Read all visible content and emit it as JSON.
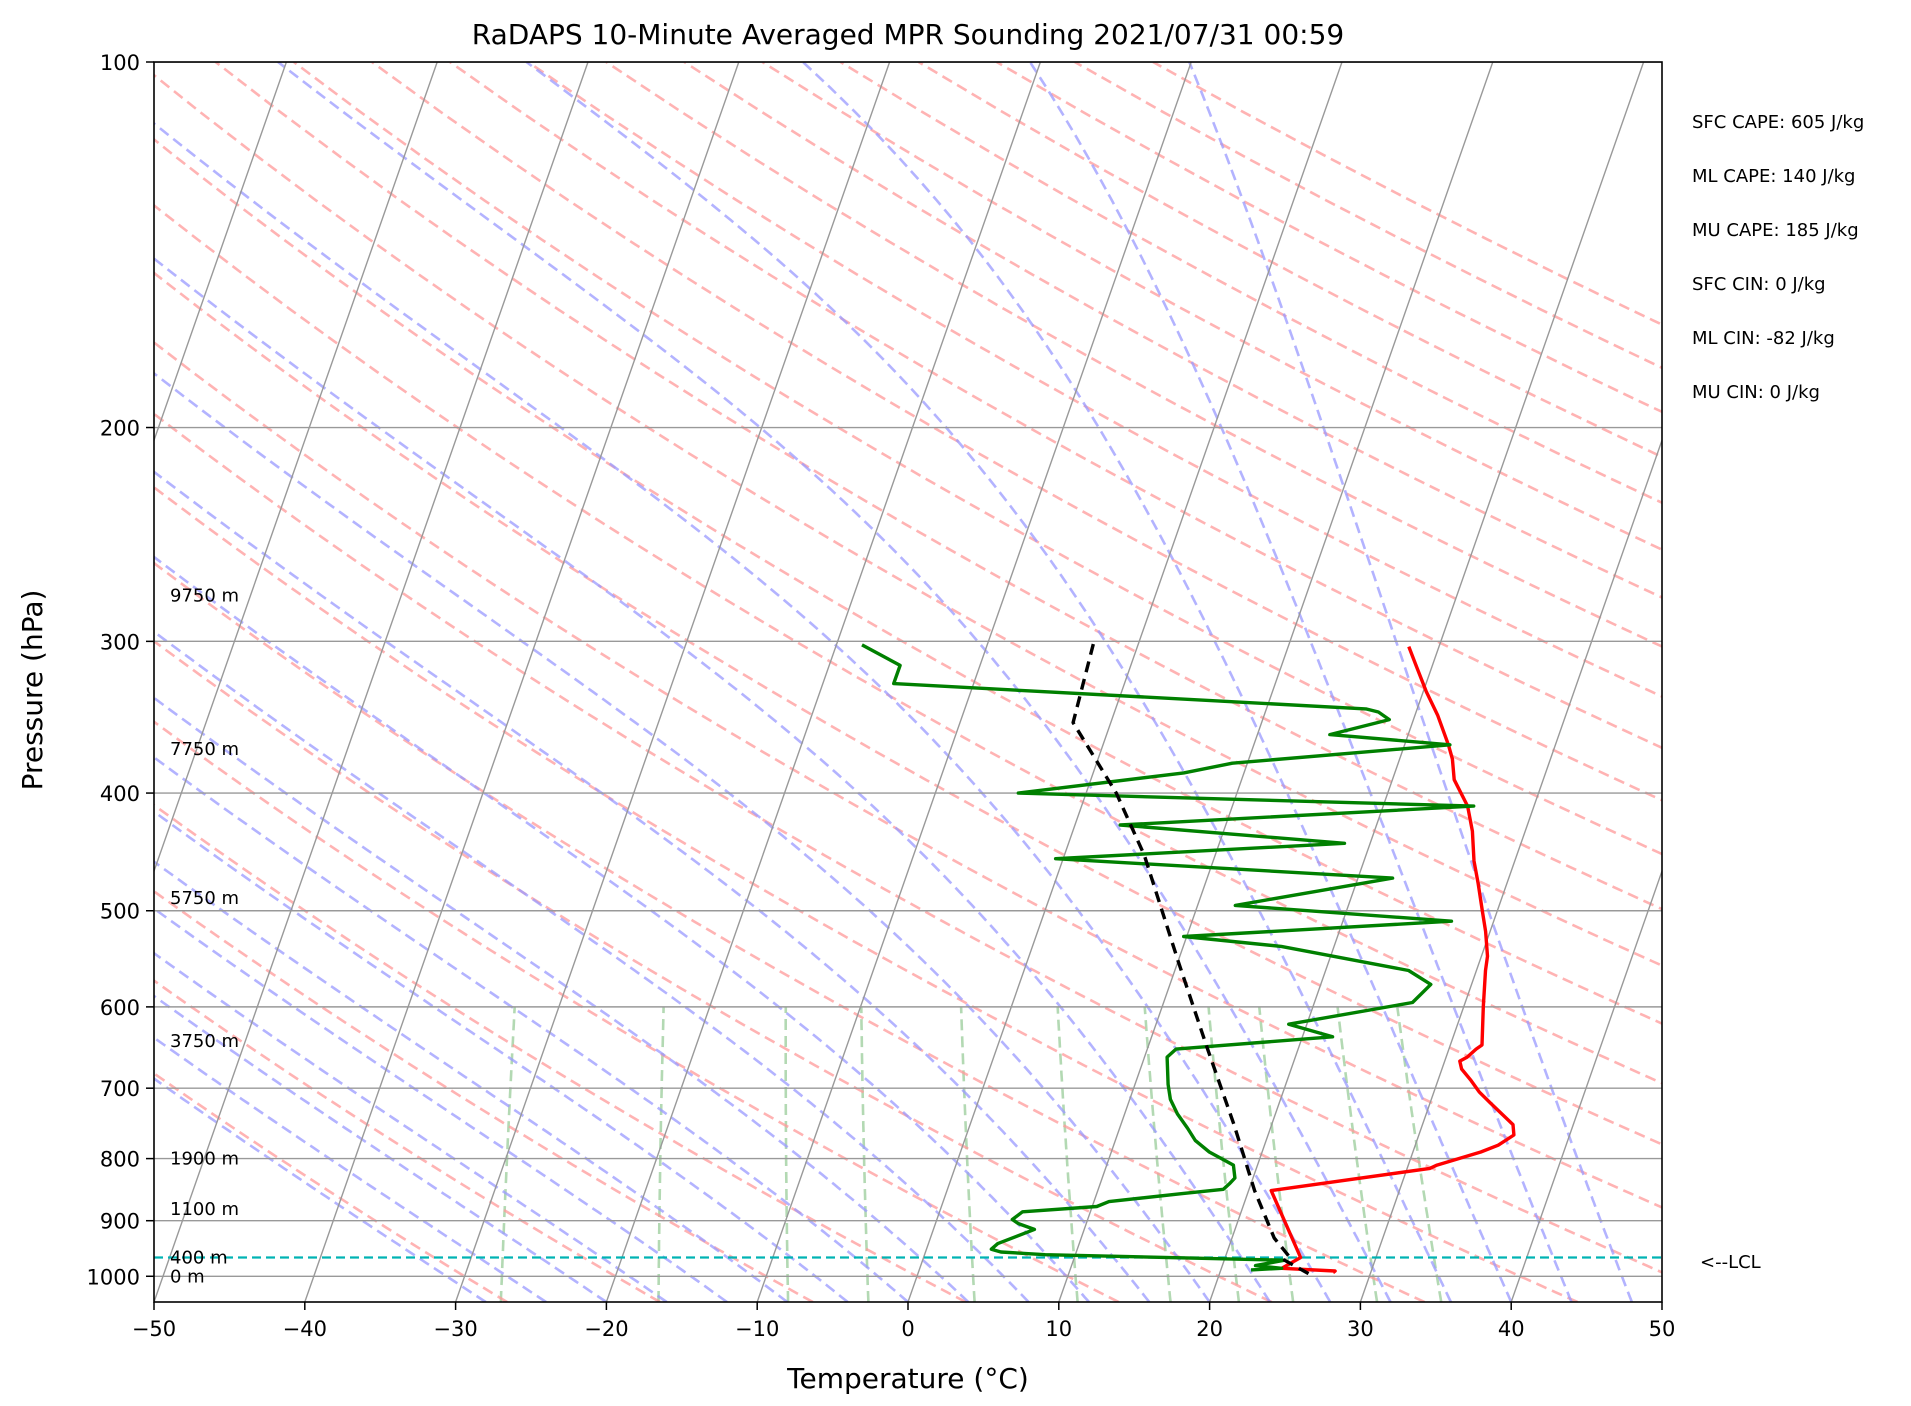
{
  "chart_data": {
    "type": "line",
    "title": "RaDAPS 10-Minute Averaged MPR Sounding 2021/07/31 00:59",
    "xlabel": "Temperature (°C)",
    "ylabel": "Pressure (hPa)",
    "xlim": [
      -50,
      50
    ],
    "ylim": [
      1050,
      100
    ],
    "y_scale": "log",
    "x_ticks": [
      "−50",
      "−40",
      "−30",
      "−20",
      "−10",
      "0",
      "10",
      "20",
      "30",
      "40",
      "50"
    ],
    "y_ticks": [
      100,
      200,
      300,
      400,
      500,
      600,
      700,
      800,
      900,
      1000
    ],
    "height_labels": [
      {
        "p": 1000,
        "text": "0 m"
      },
      {
        "p": 965,
        "text": "400 m"
      },
      {
        "p": 880,
        "text": "1100 m"
      },
      {
        "p": 800,
        "text": "1900 m"
      },
      {
        "p": 640,
        "text": "3750 m"
      },
      {
        "p": 488,
        "text": "5750 m"
      },
      {
        "p": 368,
        "text": "7750 m"
      },
      {
        "p": 275,
        "text": "9750 m"
      }
    ],
    "stats": [
      "SFC CAPE: 605 J/kg",
      "ML CAPE: 140 J/kg",
      "MU CAPE: 185 J/kg",
      "SFC CIN: 0 J/kg",
      "ML CIN: -82 J/kg",
      "MU CIN: 0 J/kg"
    ],
    "lcl": {
      "p": 965,
      "label": "<--LCL"
    },
    "colors": {
      "temperature": "#ff0000",
      "dewpoint": "#008000",
      "parcel": "#000000",
      "lcl": "#00b3b3",
      "isotherm": "#999999",
      "dry_adiabat": "#ff9999",
      "moist_adiabat": "#9999ff",
      "mixing_ratio": "#99cc99"
    },
    "series": [
      {
        "key": "temperature",
        "points": [
          [
            993,
            27.5
          ],
          [
            990,
            27.6
          ],
          [
            985,
            24.0
          ],
          [
            965,
            25.0
          ],
          [
            850,
            21.5
          ],
          [
            815,
            31.5
          ],
          [
            810,
            31.9
          ],
          [
            790,
            34.5
          ],
          [
            780,
            35.5
          ],
          [
            765,
            36.3
          ],
          [
            750,
            36.0
          ],
          [
            720,
            34.0
          ],
          [
            705,
            33.0
          ],
          [
            690,
            32.2
          ],
          [
            675,
            31.3
          ],
          [
            665,
            31.0
          ],
          [
            660,
            31.4
          ],
          [
            650,
            31.8
          ],
          [
            645,
            32.1
          ],
          [
            600,
            31.3
          ],
          [
            560,
            30.6
          ],
          [
            545,
            30.4
          ],
          [
            520,
            29.7
          ],
          [
            500,
            29.0
          ],
          [
            475,
            28.1
          ],
          [
            455,
            27.3
          ],
          [
            430,
            26.5
          ],
          [
            410,
            25.6
          ],
          [
            390,
            24.1
          ],
          [
            375,
            23.5
          ],
          [
            365,
            22.9
          ],
          [
            345,
            21.5
          ],
          [
            330,
            20.2
          ],
          [
            315,
            19.0
          ],
          [
            303,
            18.0
          ]
        ]
      },
      {
        "key": "dewpoint",
        "points": [
          [
            988,
            22.0
          ],
          [
            985,
            24.0
          ],
          [
            980,
            22.2
          ],
          [
            970,
            24.0
          ],
          [
            960,
            8.0
          ],
          [
            955,
            5.0
          ],
          [
            950,
            4.3
          ],
          [
            940,
            4.6
          ],
          [
            915,
            6.7
          ],
          [
            905,
            5.5
          ],
          [
            898,
            5.0
          ],
          [
            885,
            5.5
          ],
          [
            876,
            10.3
          ],
          [
            868,
            11.0
          ],
          [
            855,
            15.6
          ],
          [
            848,
            18.3
          ],
          [
            838,
            18.6
          ],
          [
            830,
            18.8
          ],
          [
            810,
            18.4
          ],
          [
            790,
            16.5
          ],
          [
            773,
            15.3
          ],
          [
            755,
            14.5
          ],
          [
            735,
            13.5
          ],
          [
            715,
            12.7
          ],
          [
            695,
            12.2
          ],
          [
            670,
            11.7
          ],
          [
            660,
            11.5
          ],
          [
            650,
            11.9
          ],
          [
            635,
            22.0
          ],
          [
            620,
            18.8
          ],
          [
            595,
            26.5
          ],
          [
            575,
            27.3
          ],
          [
            560,
            25.5
          ],
          [
            535,
            16.5
          ],
          [
            525,
            9.8
          ],
          [
            510,
            27.2
          ],
          [
            495,
            12.5
          ],
          [
            470,
            22.3
          ],
          [
            453,
            -0.5
          ],
          [
            440,
            18.3
          ],
          [
            425,
            3.0
          ],
          [
            410,
            26.0
          ],
          [
            400,
            -4.5
          ],
          [
            385,
            6.0
          ],
          [
            378,
            9.0
          ],
          [
            365,
            23.0
          ],
          [
            358,
            14.8
          ],
          [
            348,
            18.4
          ],
          [
            343,
            17.5
          ],
          [
            341,
            16.6
          ],
          [
            325,
            -15.3
          ],
          [
            314,
            -15.3
          ],
          [
            302,
            -18.3
          ]
        ]
      },
      {
        "key": "parcel",
        "points": [
          [
            995,
            25.9
          ],
          [
            970,
            24.0
          ],
          [
            965,
            24.3
          ],
          [
            930,
            22.8
          ],
          [
            850,
            20.4
          ],
          [
            750,
            17.5
          ],
          [
            650,
            14.0
          ],
          [
            550,
            10.0
          ],
          [
            450,
            5.3
          ],
          [
            400,
            2.0
          ],
          [
            350,
            -2.5
          ],
          [
            300,
            -3.0
          ]
        ]
      }
    ]
  }
}
